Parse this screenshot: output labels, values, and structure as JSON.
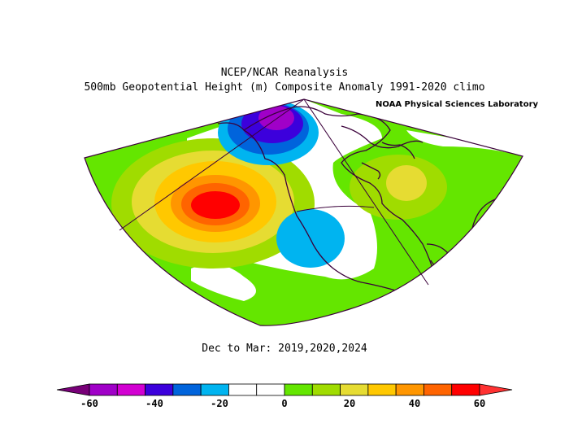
{
  "title": "NCEP/NCAR Reanalysis",
  "subtitle": "500mb Geopotential Height (m) Composite Anomaly 1991-2020 climo",
  "credit": "NOAA Physical Sciences Laboratory",
  "period": "Dec to Mar: 2019,2020,2024",
  "colorbar": {
    "colors": [
      "#780078",
      "#a000c8",
      "#d200d2",
      "#3c00dc",
      "#0064dc",
      "#00b4f0",
      "#ffffff",
      "#ffffff",
      "#64e600",
      "#a0dc00",
      "#e6dc32",
      "#ffc800",
      "#ff9600",
      "#ff6400",
      "#ff0000",
      "#ff3232"
    ],
    "boundaries": [
      -70,
      -60,
      -50,
      -40,
      -30,
      -20,
      -10,
      0,
      10,
      20,
      30,
      40,
      50,
      60,
      70
    ],
    "tick_values": [
      -60,
      -40,
      -20,
      0,
      20,
      40,
      60
    ],
    "tick_labels": [
      "-60",
      "-40",
      "-20",
      "0",
      "20",
      "40",
      "60"
    ]
  },
  "anomaly_centers": [
    {
      "region": "North Pacific (west of Pacific NW)",
      "sign": "positive",
      "max_value": 60
    },
    {
      "region": "Gulf of Alaska / Alaska",
      "sign": "negative",
      "min_value": -50
    },
    {
      "region": "Southwest US / Baja",
      "sign": "negative",
      "min_value": -20
    },
    {
      "region": "Eastern US / Great Lakes",
      "sign": "positive",
      "max_value": 30
    },
    {
      "region": "Subtropics / Atlantic",
      "sign": "positive",
      "max_value": 20
    }
  ]
}
